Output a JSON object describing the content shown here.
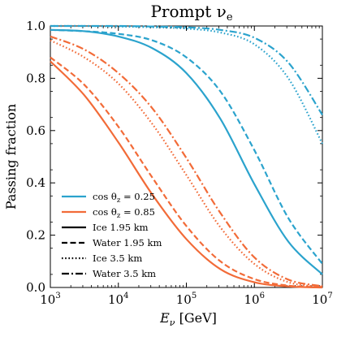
{
  "chart_data": {
    "type": "line",
    "title": "Prompt ν",
    "title_subscript": "e",
    "xlabel": "E",
    "xlabel_subscript": "ν",
    "xlabel_unit": "[GeV]",
    "ylabel": "Passing fraction",
    "x_scale": "log",
    "xlim": [
      1000,
      10000000
    ],
    "ylim": [
      0.0,
      1.0
    ],
    "x_ticks": [
      {
        "value": 1000,
        "base": "10",
        "exp": "3"
      },
      {
        "value": 10000,
        "base": "10",
        "exp": "4"
      },
      {
        "value": 100000,
        "base": "10",
        "exp": "5"
      },
      {
        "value": 1000000,
        "base": "10",
        "exp": "6"
      },
      {
        "value": 10000000,
        "base": "10",
        "exp": "7"
      }
    ],
    "y_ticks": [
      {
        "value": 0.0,
        "label": "0.0"
      },
      {
        "value": 0.2,
        "label": "0.2"
      },
      {
        "value": 0.4,
        "label": "0.4"
      },
      {
        "value": 0.6,
        "label": "0.6"
      },
      {
        "value": 0.8,
        "label": "0.8"
      },
      {
        "value": 1.0,
        "label": "1.0"
      }
    ],
    "grid": false,
    "legend_position": "bottom-left",
    "colors": {
      "cos025": "#2ba3cd",
      "cos085": "#f26b38"
    },
    "legend": [
      {
        "label": "cos θ",
        "subscript": "z",
        "suffix": " = 0.25",
        "color": "#2ba3cd",
        "style": "solid"
      },
      {
        "label": "cos θ",
        "subscript": "z",
        "suffix": " = 0.85",
        "color": "#f26b38",
        "style": "solid"
      },
      {
        "label": "Ice 1.95 km",
        "color": "#000000",
        "style": "solid"
      },
      {
        "label": "Water 1.95 km",
        "color": "#000000",
        "style": "dashed"
      },
      {
        "label": "Ice 3.5 km",
        "color": "#000000",
        "style": "dotted"
      },
      {
        "label": "Water 3.5 km",
        "color": "#000000",
        "style": "dashdot"
      }
    ],
    "x": [
      1000,
      3162,
      10000,
      31623,
      100000,
      316228,
      1000000,
      3162278,
      10000000
    ],
    "series": [
      {
        "cos": "0.25",
        "medium": "Ice 1.95 km",
        "color": "#2ba3cd",
        "style": "solid",
        "values": [
          0.985,
          0.98,
          0.96,
          0.915,
          0.82,
          0.645,
          0.395,
          0.175,
          0.05
        ]
      },
      {
        "cos": "0.25",
        "medium": "Water 1.95 km",
        "color": "#2ba3cd",
        "style": "dashed",
        "values": [
          0.985,
          0.98,
          0.97,
          0.945,
          0.88,
          0.75,
          0.525,
          0.265,
          0.09
        ]
      },
      {
        "cos": "0.25",
        "medium": "Ice 3.5 km",
        "color": "#2ba3cd",
        "style": "dotted",
        "values": [
          1.0,
          1.0,
          0.998,
          0.995,
          0.99,
          0.975,
          0.93,
          0.8,
          0.55
        ]
      },
      {
        "cos": "0.25",
        "medium": "Water 3.5 km",
        "color": "#2ba3cd",
        "style": "dashdot",
        "values": [
          1.0,
          1.0,
          1.0,
          0.998,
          0.995,
          0.985,
          0.955,
          0.86,
          0.66
        ]
      },
      {
        "cos": "0.85",
        "medium": "Ice 1.95 km",
        "color": "#f26b38",
        "style": "solid",
        "values": [
          0.865,
          0.735,
          0.555,
          0.355,
          0.185,
          0.07,
          0.02,
          0.004,
          0.0
        ]
      },
      {
        "cos": "0.85",
        "medium": "Water 1.95 km",
        "color": "#f26b38",
        "style": "dashed",
        "values": [
          0.88,
          0.775,
          0.615,
          0.42,
          0.235,
          0.1,
          0.032,
          0.007,
          0.001
        ]
      },
      {
        "cos": "0.85",
        "medium": "Ice 3.5 km",
        "color": "#f26b38",
        "style": "dotted",
        "values": [
          0.945,
          0.88,
          0.78,
          0.625,
          0.43,
          0.23,
          0.09,
          0.02,
          0.003
        ]
      },
      {
        "cos": "0.85",
        "medium": "Water 3.5 km",
        "color": "#f26b38",
        "style": "dashdot",
        "values": [
          0.96,
          0.91,
          0.82,
          0.685,
          0.495,
          0.285,
          0.115,
          0.03,
          0.005
        ]
      }
    ]
  }
}
